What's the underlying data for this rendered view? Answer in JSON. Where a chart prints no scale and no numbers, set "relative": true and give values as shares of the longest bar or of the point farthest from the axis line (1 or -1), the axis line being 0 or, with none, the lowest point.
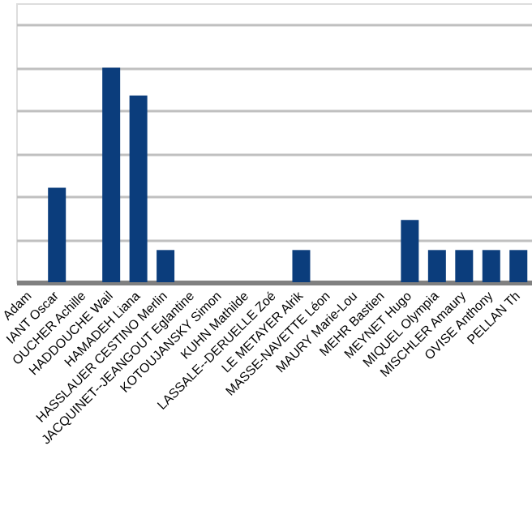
{
  "chart_data": {
    "type": "bar",
    "relative": true,
    "grid": "y",
    "categories": [
      "Adam",
      "IANT Oscar",
      "OUCHER Achille",
      "HADDOUCHE Wail",
      "HAMADEH Liana",
      "HASSLAUER CESTINO  Merlin",
      "JACQUINET--JEANGOUT Eglantine",
      "KOTOUJANSKY Simon",
      "KUHN Mathilde",
      "LASSALE--DERUELLE Zoé",
      "LE METAYER Alrik",
      "MASSE-NAVETTE Léon",
      "MAURY  Marie-Lou",
      "MEHR Bastien",
      "MEYNET Hugo",
      "MIQUEL Olympia",
      "MISCHLER Amaury",
      "OVISE Anthony",
      "PELLAN Th"
    ],
    "series": [
      {
        "color": "#0b3d7c",
        "values": [
          0,
          0.44,
          0,
          1,
          0.87,
          0.15,
          0,
          0,
          0,
          0,
          0.15,
          0,
          0,
          0,
          0.29,
          0.15,
          0.15,
          0.15,
          0.15
        ]
      }
    ]
  }
}
